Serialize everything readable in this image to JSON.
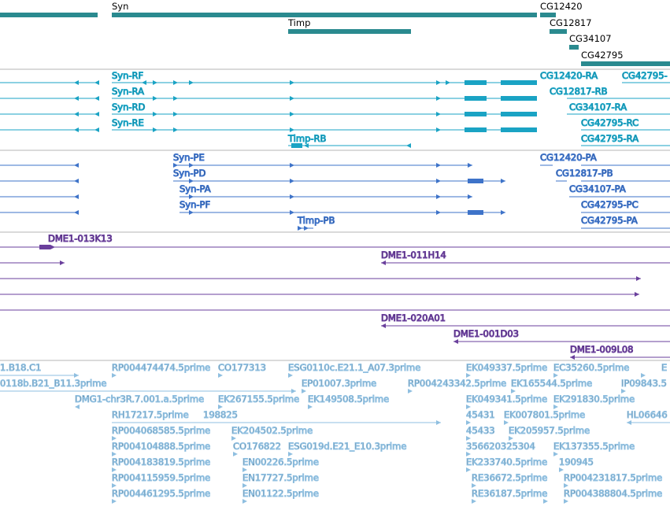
{
  "colors": {
    "gene": "#2a8a8f",
    "transcript1": "#1aa3c4",
    "transcript2": "#3e73c9",
    "clone": "#6a3f9c",
    "est": "#8fbfe0",
    "divider": "#b4b4b4"
  },
  "sections": {
    "genes": {
      "labels": [
        "Syn",
        "Timp",
        "CG12420",
        "CG12817",
        "CG34107",
        "CG42795"
      ]
    },
    "transcripts_a": {
      "labels": [
        "Syn-RF",
        "Syn-RA",
        "Syn-RD",
        "Syn-RE",
        "Timp-RB",
        "CG12420-RA",
        "CG42795-",
        "CG12817-RB",
        "CG34107-RA",
        "CG42795-RC",
        "CG42795-RA"
      ]
    },
    "transcripts_b": {
      "labels": [
        "Syn-PE",
        "Syn-PD",
        "Syn-PA",
        "Syn-PF",
        "Timp-PB",
        "CG12420-PA",
        "CG12817-PB",
        "CG34107-PA",
        "CG42795-PC",
        "CG42795-PA"
      ]
    },
    "clones": {
      "labels": [
        "DME1-013K13",
        "DME1-011H14",
        "DME1-020A01",
        "DME1-001D03",
        "DME1-009L08"
      ]
    },
    "ests": {
      "labels": [
        "1.B18.C1",
        "RP004474474.5prime",
        "CO177313",
        "ESG0110c.E21.1_A07.3prime",
        "EK049337.5prime",
        "EC35260.5prime",
        "E",
        "0118b.B21_B11.3prime",
        "EP01007.3prime",
        "RP004243342.5prime",
        "EK165544.5prime",
        "IP09843.5",
        "DMG1-chr3R.7.001.a.5prime",
        "EK267155.5prime",
        "EK149508.5prime",
        "EK049341.5prime",
        "EK291830.5prime",
        "RH17217.5prime",
        "198825",
        "45431",
        "EK007801.5prime",
        "HL06646",
        "RP004068585.5prime",
        "EK204502.5prime",
        "45433",
        "EK205957.5prime",
        "RP004104888.5prime",
        "CO176822",
        "ESG019d.E21_E10.3prime",
        "356620325304",
        "EK137355.5prime",
        "RP004183819.5prime",
        "EN00226.5prime",
        "EK233740.5prime",
        "190945",
        "RP004115959.5prime",
        "EN17727.5prime",
        "RE36672.5prime",
        "RP004231817.5prime",
        "RP004461295.5prime",
        "EN01122.5prime",
        "RE36187.5prime",
        "RP004388804.5prime"
      ]
    }
  }
}
